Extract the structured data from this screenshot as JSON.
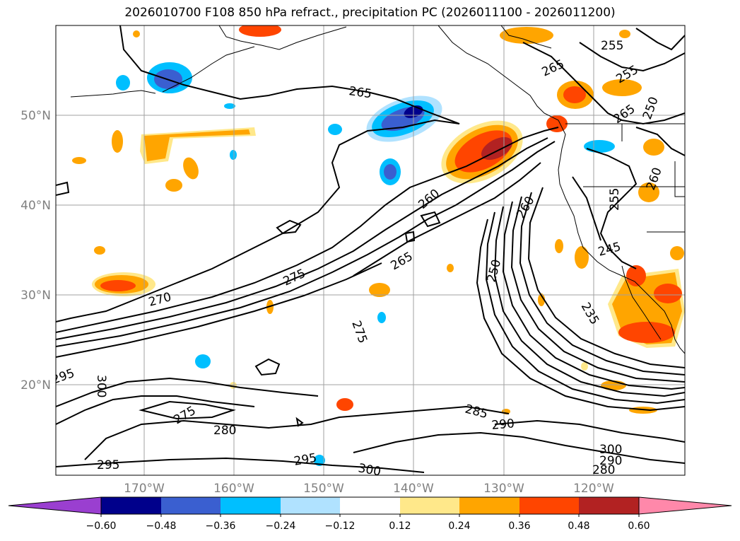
{
  "title": "2026010700 F108 850 hPa refract., precipitation PC (2026011100 - 2026011200)",
  "lat_labels": [
    "50°N",
    "40°N",
    "30°N",
    "20°N"
  ],
  "lon_labels": [
    "170°W",
    "160°W",
    "150°W",
    "140°W",
    "130°W",
    "120°W"
  ],
  "colorbar": {
    "ticks": [
      "−0.60",
      "−0.48",
      "−0.36",
      "−0.24",
      "−0.12",
      "0.12",
      "0.24",
      "0.36",
      "0.48",
      "0.60"
    ],
    "colors": [
      "#9a3fd0",
      "#00008b",
      "#3a5fd0",
      "#00bfff",
      "#b0e2ff",
      "#ffffff",
      "#ffe88a",
      "#ffa500",
      "#ff4500",
      "#b22222",
      "#ff88aa"
    ]
  },
  "contour_labels": [
    {
      "text": "265"
    },
    {
      "text": "255"
    },
    {
      "text": "265"
    },
    {
      "text": "255"
    },
    {
      "text": "265"
    },
    {
      "text": "250"
    },
    {
      "text": "260"
    },
    {
      "text": "260"
    },
    {
      "text": "255"
    },
    {
      "text": "260"
    },
    {
      "text": "245"
    },
    {
      "text": "265"
    },
    {
      "text": "275"
    },
    {
      "text": "270"
    },
    {
      "text": "250"
    },
    {
      "text": "235"
    },
    {
      "text": "275"
    },
    {
      "text": "295"
    },
    {
      "text": "300"
    },
    {
      "text": "275"
    },
    {
      "text": "280"
    },
    {
      "text": "285"
    },
    {
      "text": "290"
    },
    {
      "text": "295"
    },
    {
      "text": "300"
    },
    {
      "text": "295"
    },
    {
      "text": "300"
    },
    {
      "text": "290"
    },
    {
      "text": "280"
    }
  ]
}
